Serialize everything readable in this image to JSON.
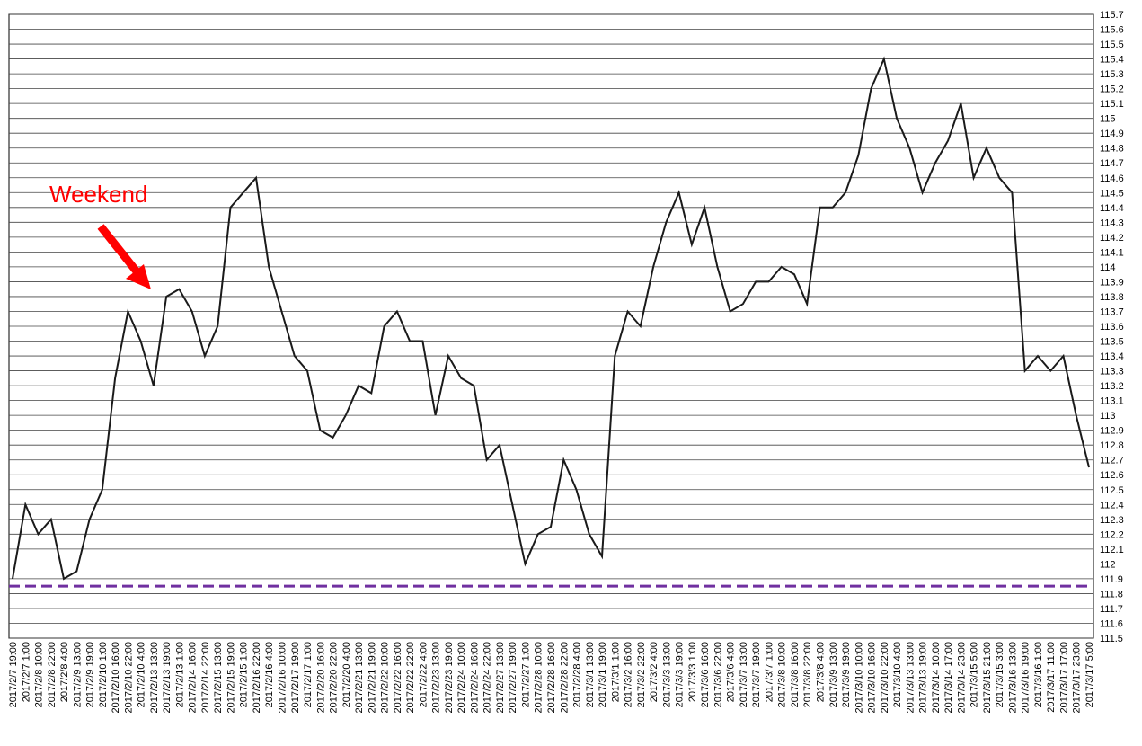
{
  "chart_data": {
    "type": "line",
    "annotation": "Weekend",
    "annotation_color": "#ff0000",
    "color": "#1a1a1a",
    "grid": true,
    "hline": {
      "value": 111.85,
      "color": "#7030a0"
    },
    "ylim": [
      111.5,
      115.7
    ],
    "yticks": [
      111.5,
      111.6,
      111.7,
      111.8,
      111.9,
      112,
      112.1,
      112.2,
      112.3,
      112.4,
      112.5,
      112.6,
      112.7,
      112.8,
      112.9,
      113,
      113.1,
      113.2,
      113.3,
      113.4,
      113.5,
      113.6,
      113.7,
      113.8,
      113.9,
      114,
      114.1,
      114.2,
      114.3,
      114.4,
      114.5,
      114.6,
      114.7,
      114.8,
      114.9,
      115,
      115.1,
      115.2,
      115.3,
      115.4,
      115.5,
      115.6,
      115.7
    ],
    "categories": [
      "2017/2/7 19:00",
      "2017/2/7 1:00",
      "2017/2/8 10:00",
      "2017/2/8 22:00",
      "2017/2/8 4:00",
      "2017/2/9 13:00",
      "2017/2/9 19:00",
      "2017/2/10 1:00",
      "2017/2/10 16:00",
      "2017/2/10 22:00",
      "2017/2/10 4:00",
      "2017/2/13 13:00",
      "2017/2/13 19:00",
      "2017/2/13 1:00",
      "2017/2/14 16:00",
      "2017/2/14 22:00",
      "2017/2/15 13:00",
      "2017/2/15 19:00",
      "2017/2/15 1:00",
      "2017/2/16 22:00",
      "2017/2/16 4:00",
      "2017/2/16 10:00",
      "2017/2/17 19:00",
      "2017/2/17 1:00",
      "2017/2/20 16:00",
      "2017/2/20 22:00",
      "2017/2/20 4:00",
      "2017/2/21 13:00",
      "2017/2/21 19:00",
      "2017/2/22 10:00",
      "2017/2/22 16:00",
      "2017/2/22 22:00",
      "2017/2/22 4:00",
      "2017/2/23 13:00",
      "2017/2/23 19:00",
      "2017/2/24 10:00",
      "2017/2/24 16:00",
      "2017/2/24 22:00",
      "2017/2/27 13:00",
      "2017/2/27 19:00",
      "2017/2/27 1:00",
      "2017/2/28 10:00",
      "2017/2/28 16:00",
      "2017/2/28 22:00",
      "2017/2/28 4:00",
      "2017/3/1 13:00",
      "2017/3/1 19:00",
      "2017/3/1 1:00",
      "2017/3/2 16:00",
      "2017/3/2 22:00",
      "2017/3/2 4:00",
      "2017/3/3 13:00",
      "2017/3/3 19:00",
      "2017/3/3 1:00",
      "2017/3/6 16:00",
      "2017/3/6 22:00",
      "2017/3/6 4:00",
      "2017/3/7 13:00",
      "2017/3/7 19:00",
      "2017/3/7 1:00",
      "2017/3/8 10:00",
      "2017/3/8 16:00",
      "2017/3/8 22:00",
      "2017/3/8 4:00",
      "2017/3/9 13:00",
      "2017/3/9 19:00",
      "2017/3/10 10:00",
      "2017/3/10 16:00",
      "2017/3/10 22:00",
      "2017/3/10 4:00",
      "2017/3/13 13:00",
      "2017/3/13 19:00",
      "2017/3/14 10:00",
      "2017/3/14 17:00",
      "2017/3/14 23:00",
      "2017/3/15 5:00",
      "2017/3/15 21:00",
      "2017/3/15 3:00",
      "2017/3/16 13:00",
      "2017/3/16 19:00",
      "2017/3/16 1:00",
      "2017/3/17 11:00",
      "2017/3/17 17:00",
      "2017/3/17 23:00",
      "2017/3/17 5:00"
    ],
    "values": [
      111.9,
      112.4,
      112.2,
      112.3,
      111.9,
      111.95,
      112.3,
      112.5,
      113.25,
      113.7,
      113.5,
      113.2,
      113.8,
      113.85,
      113.7,
      113.4,
      113.6,
      114.4,
      114.5,
      114.6,
      114.0,
      113.7,
      113.4,
      113.3,
      112.9,
      112.85,
      113.0,
      113.2,
      113.15,
      113.6,
      113.7,
      113.5,
      113.5,
      113.0,
      113.4,
      113.25,
      113.2,
      112.7,
      112.8,
      112.4,
      112.0,
      112.2,
      112.25,
      112.7,
      112.5,
      112.2,
      112.05,
      113.4,
      113.7,
      113.6,
      114.0,
      114.3,
      114.5,
      114.15,
      114.4,
      114.0,
      113.7,
      113.75,
      113.9,
      113.9,
      114.0,
      113.95,
      113.75,
      114.4,
      114.4,
      114.5,
      114.75,
      115.2,
      115.4,
      115.0,
      114.8,
      114.5,
      114.7,
      114.85,
      115.1,
      114.6,
      114.8,
      114.6,
      114.5,
      113.3,
      113.4,
      113.3,
      113.4,
      113.0,
      112.65
    ]
  }
}
